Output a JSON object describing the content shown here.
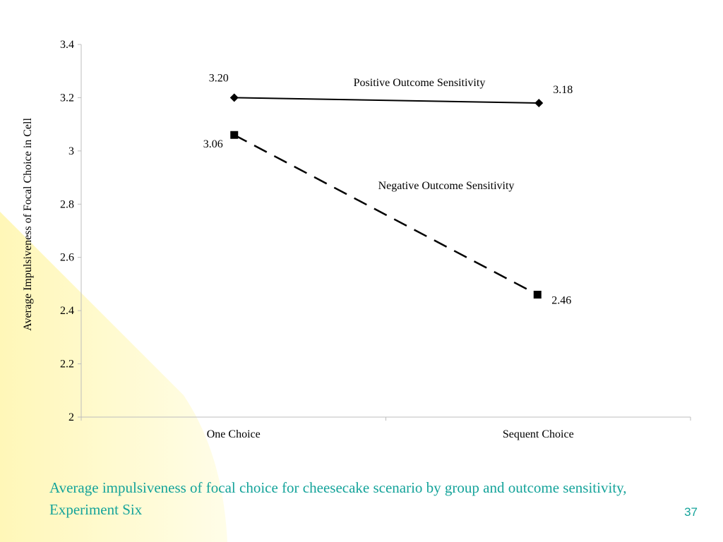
{
  "slide": {
    "caption": "Average impulsiveness of focal choice for cheesecake scenario by group and outcome sensitivity, Experiment Six",
    "page_number": "37"
  },
  "colors": {
    "caption": "#14a39a",
    "background_accent": "#fffbc8",
    "axis": "#bdbdbd",
    "series": "#000000"
  },
  "chart_data": {
    "type": "line",
    "title": "",
    "xlabel": "",
    "ylabel": "Average Impulsiveness of Focal Choice in Cell",
    "categories": [
      "One Choice",
      "Sequent Choice"
    ],
    "ylim": [
      2,
      3.4
    ],
    "yticks": [
      "2",
      "2.2",
      "2.4",
      "2.6",
      "2.8",
      "3",
      "3.2",
      "3.4"
    ],
    "grid": false,
    "legend": "none (series labeled inline)",
    "series": [
      {
        "name": "Positive Outcome Sensitivity",
        "values": [
          3.2,
          3.18
        ],
        "data_labels": [
          "3.20",
          "3.18"
        ],
        "marker": "diamond",
        "line_style": "solid"
      },
      {
        "name": "Negative Outcome Sensitivity",
        "values": [
          3.06,
          2.46
        ],
        "data_labels": [
          "3.06",
          "2.46"
        ],
        "marker": "square",
        "line_style": "dashed"
      }
    ]
  }
}
